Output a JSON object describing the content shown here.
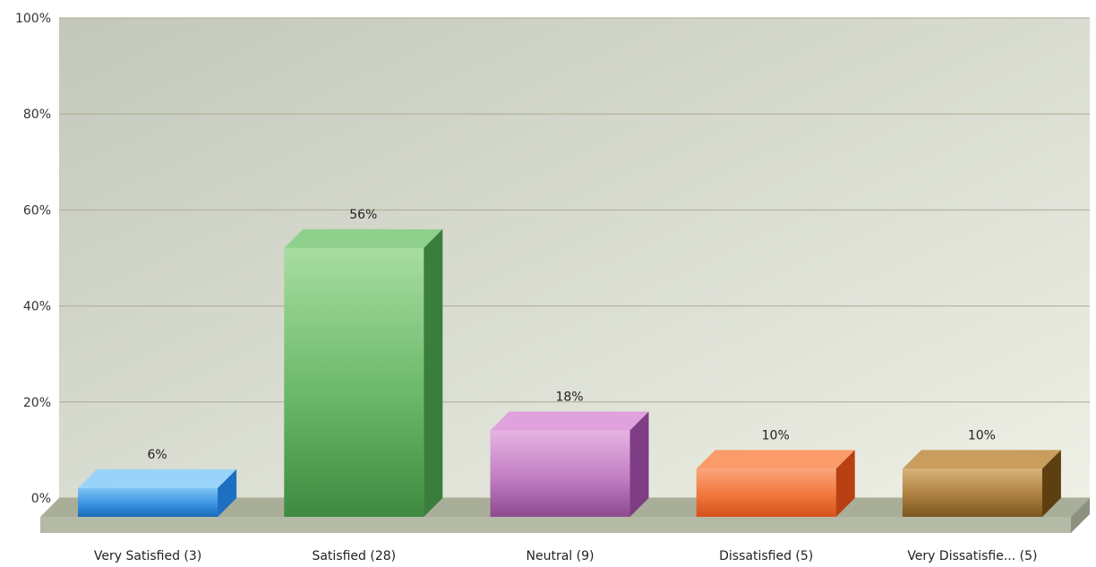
{
  "chart_data": {
    "type": "bar",
    "title": "",
    "xlabel": "",
    "ylabel": "",
    "categories": [
      "Very Satisfied (3)",
      "Satisfied (28)",
      "Neutral (9)",
      "Dissatisfied (5)",
      "Very Dissatisfie... (5)"
    ],
    "values": [
      6,
      56,
      18,
      10,
      10
    ],
    "value_labels": [
      "6%",
      "56%",
      "18%",
      "10%",
      "10%"
    ],
    "ylim": [
      0,
      100
    ],
    "yticks": [
      0,
      20,
      40,
      60,
      80,
      100
    ],
    "ytick_labels": [
      "0%",
      "20%",
      "40%",
      "60%",
      "80%",
      "100%"
    ],
    "grid": true,
    "legend": "none",
    "style": "3d-bars",
    "colors": [
      {
        "light": "#7cc4f5",
        "mid": "#3a94e0",
        "dark": "#1a6ab8",
        "side": "#1d6fc2",
        "top": "#9ad3fa"
      },
      {
        "light": "#a8dda0",
        "mid": "#6ab86a",
        "dark": "#3e8a40",
        "side": "#3a7e3c",
        "top": "#8fd08c"
      },
      {
        "light": "#e6b3e3",
        "mid": "#c27ec2",
        "dark": "#8e4a8e",
        "side": "#7f3d85",
        "top": "#dfa2dc"
      },
      {
        "light": "#fba57a",
        "mid": "#f0773b",
        "dark": "#d4521c",
        "side": "#b84012",
        "top": "#fb9b6a"
      },
      {
        "light": "#d8b27a",
        "mid": "#ad7f3f",
        "dark": "#7a561f",
        "side": "#5e4010",
        "top": "#c99d5e"
      }
    ],
    "background": {
      "plot_light": "#eef0e6",
      "plot_dark": "#c4c8bc",
      "gridline": "#a8ad90",
      "floor": "#b4baa6"
    }
  }
}
